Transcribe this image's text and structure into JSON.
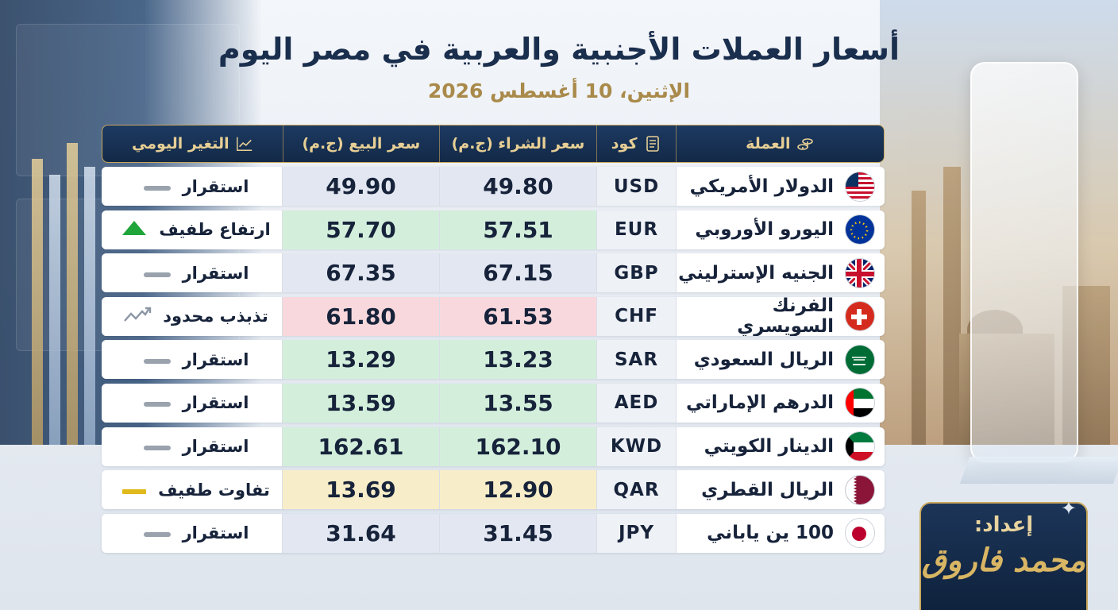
{
  "title": "أسعار العملات الأجنبية والعربية في مصر اليوم",
  "date": "الإثنين، 10 أغسطس 2026",
  "headers": {
    "currency": "العملة",
    "code": "كود",
    "buy": "سعر الشراء (ج.م)",
    "sell": "سعر البيع (ج.م)",
    "change": "التغير اليومي"
  },
  "rows": [
    {
      "name": "الدولار الأمريكي",
      "code": "USD",
      "buy": "49.80",
      "sell": "49.90",
      "change": "استقرار",
      "trend": "stable",
      "tone": "neutral",
      "flag": "us-flag-icon"
    },
    {
      "name": "اليورو الأوروبي",
      "code": "EUR",
      "buy": "57.51",
      "sell": "57.70",
      "change": "ارتفاع طفيف",
      "trend": "up",
      "tone": "green",
      "flag": "eu-flag-icon"
    },
    {
      "name": "الجنيه الإسترليني",
      "code": "GBP",
      "buy": "67.15",
      "sell": "67.35",
      "change": "استقرار",
      "trend": "stable",
      "tone": "neutral",
      "flag": "uk-flag-icon"
    },
    {
      "name": "الفرنك السويسري",
      "code": "CHF",
      "buy": "61.53",
      "sell": "61.80",
      "change": "تذبذب محدود",
      "trend": "fluctuate",
      "tone": "red",
      "flag": "swiss-flag-icon"
    },
    {
      "name": "الريال السعودي",
      "code": "SAR",
      "buy": "13.23",
      "sell": "13.29",
      "change": "استقرار",
      "trend": "stable",
      "tone": "green",
      "flag": "saudi-flag-icon"
    },
    {
      "name": "الدرهم الإماراتي",
      "code": "AED",
      "buy": "13.55",
      "sell": "13.59",
      "change": "استقرار",
      "trend": "stable",
      "tone": "green",
      "flag": "uae-flag-icon"
    },
    {
      "name": "الدينار الكويتي",
      "code": "KWD",
      "buy": "162.10",
      "sell": "162.61",
      "change": "استقرار",
      "trend": "stable",
      "tone": "green",
      "flag": "kuwait-flag-icon"
    },
    {
      "name": "الريال القطري",
      "code": "QAR",
      "buy": "12.90",
      "sell": "13.69",
      "change": "تفاوت طفيف",
      "trend": "slight",
      "tone": "yellow",
      "flag": "qatar-flag-icon"
    },
    {
      "name": "100 ين ياباني",
      "code": "JPY",
      "buy": "31.45",
      "sell": "31.64",
      "change": "استقرار",
      "trend": "stable",
      "tone": "neutral",
      "flag": "japan-flag-icon"
    }
  ],
  "credit": {
    "label": "إعداد:",
    "name": "محمد فاروق"
  },
  "colors": {
    "navy": "#132947",
    "gold": "#c9a75d",
    "up": "#1fa53a",
    "stable": "#9aa2ad",
    "slight": "#e0b91a"
  }
}
